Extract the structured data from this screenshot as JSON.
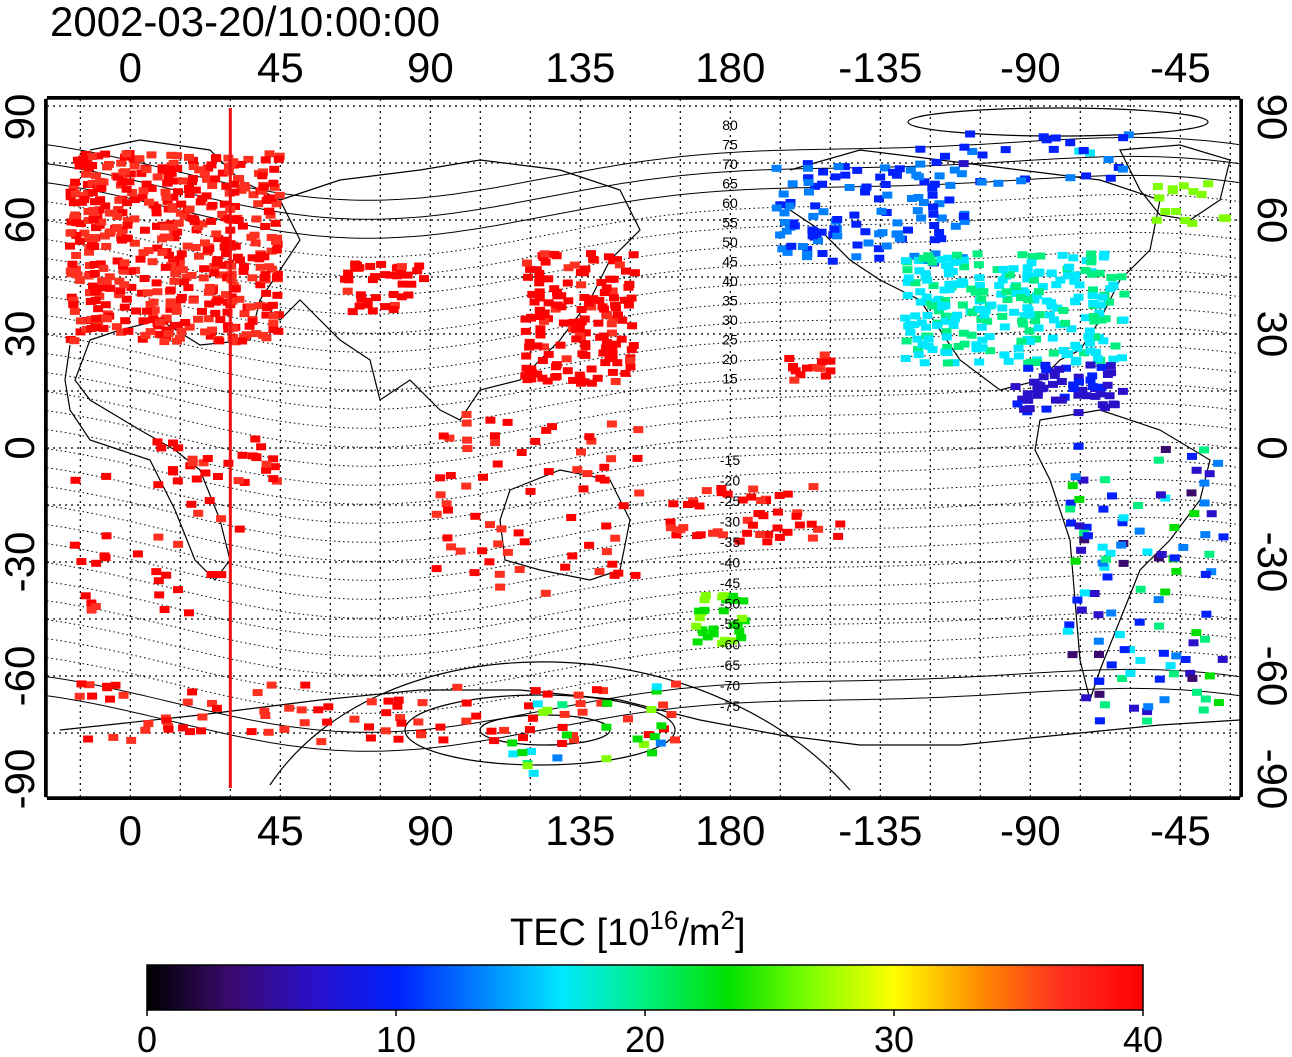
{
  "title": "2002-03-20/10:00:00",
  "map": {
    "lon_ticks": [
      "0",
      "45",
      "90",
      "135",
      "180",
      "-135",
      "-90",
      "-45"
    ],
    "lat_ticks": [
      "90",
      "60",
      "30",
      "0",
      "-30",
      "-60",
      "-90"
    ],
    "mlat_labels_north": [
      "80",
      "75",
      "70",
      "65",
      "60",
      "55",
      "50",
      "45",
      "40",
      "35",
      "30",
      "25",
      "20",
      "15"
    ],
    "mlat_labels_south": [
      "-15",
      "-20",
      "-25",
      "-30",
      "-35",
      "-40",
      "-45",
      "-50",
      "-55",
      "-60",
      "-65",
      "-70",
      "-75"
    ],
    "marker_line_lon": 30
  },
  "colorbar": {
    "title_prefix": "TEC  [10",
    "title_sup": "16",
    "title_mid": "/m",
    "title_sup2": "2",
    "title_suffix": "]",
    "ticks": [
      "0",
      "10",
      "20",
      "30",
      "40"
    ],
    "range": [
      0,
      40
    ],
    "colors": [
      "#000000",
      "#3a0a6e",
      "#2a10c8",
      "#0020ff",
      "#0080ff",
      "#00e8ff",
      "#00f080",
      "#00e000",
      "#80ff00",
      "#ffff00",
      "#ff9000",
      "#ff3020",
      "#ff0000"
    ]
  }
}
